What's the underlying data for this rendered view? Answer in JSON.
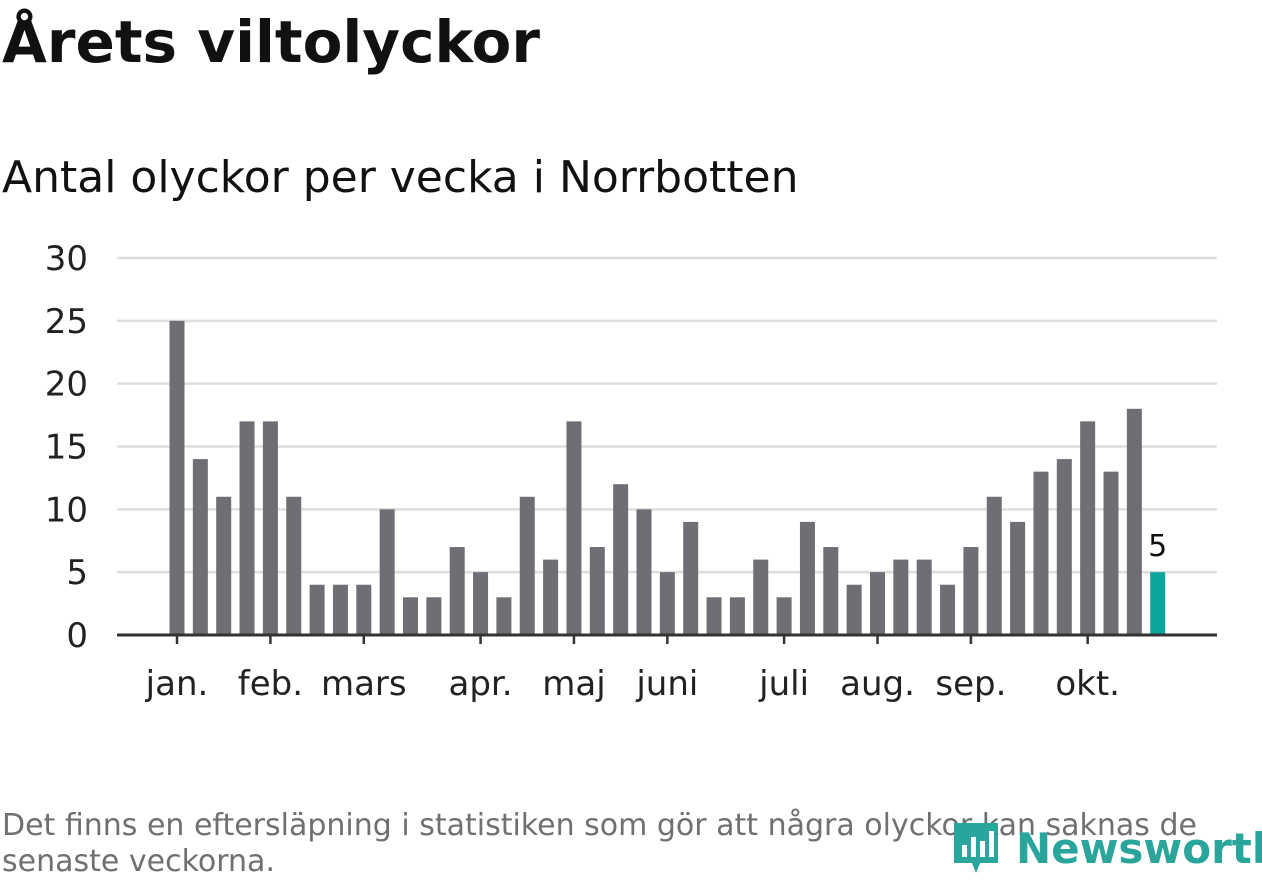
{
  "title": "Årets viltolyckor",
  "subtitle": "Antal olyckor per vecka i Norrbotten",
  "note": "Det finns en eftersläpning i statistiken som gör att några olyckor kan saknas de senaste veckorna.",
  "brand": {
    "name": "Newsworthy",
    "color": "#2aa59c"
  },
  "colors": {
    "bar": "#6f6e74",
    "highlight": "#0aa59c",
    "grid": "#dedede",
    "axis": "#333333",
    "text": "#222222"
  },
  "chart_data": {
    "type": "bar",
    "title": "Årets viltolyckor",
    "subtitle": "Antal olyckor per vecka i Norrbotten",
    "xlabel": "",
    "ylabel": "",
    "ylim": [
      0,
      30
    ],
    "yticks": [
      0,
      5,
      10,
      15,
      20,
      25,
      30
    ],
    "grid": true,
    "weeks": [
      1,
      2,
      3,
      4,
      5,
      6,
      7,
      8,
      9,
      10,
      11,
      12,
      13,
      14,
      15,
      16,
      17,
      18,
      19,
      20,
      21,
      22,
      23,
      24,
      25,
      26,
      27,
      28,
      29,
      30,
      31,
      32,
      33,
      34,
      35,
      36,
      37,
      38,
      39,
      40,
      41,
      42,
      43
    ],
    "values": [
      25,
      14,
      11,
      17,
      17,
      11,
      4,
      4,
      4,
      10,
      3,
      3,
      7,
      5,
      3,
      11,
      6,
      17,
      7,
      12,
      10,
      5,
      9,
      3,
      3,
      6,
      3,
      9,
      7,
      4,
      5,
      6,
      6,
      4,
      7,
      11,
      9,
      13,
      14,
      17,
      13,
      18,
      5
    ],
    "highlight_index": 42,
    "data_labels": [
      {
        "week": 43,
        "text": "5"
      }
    ],
    "month_ticks": [
      {
        "label": "jan.",
        "week": 1
      },
      {
        "label": "feb.",
        "week": 5
      },
      {
        "label": "mars",
        "week": 9
      },
      {
        "label": "apr.",
        "week": 14
      },
      {
        "label": "maj",
        "week": 18
      },
      {
        "label": "juni",
        "week": 22
      },
      {
        "label": "juli",
        "week": 27
      },
      {
        "label": "aug.",
        "week": 31
      },
      {
        "label": "sep.",
        "week": 35
      },
      {
        "label": "okt.",
        "week": 40
      }
    ]
  }
}
